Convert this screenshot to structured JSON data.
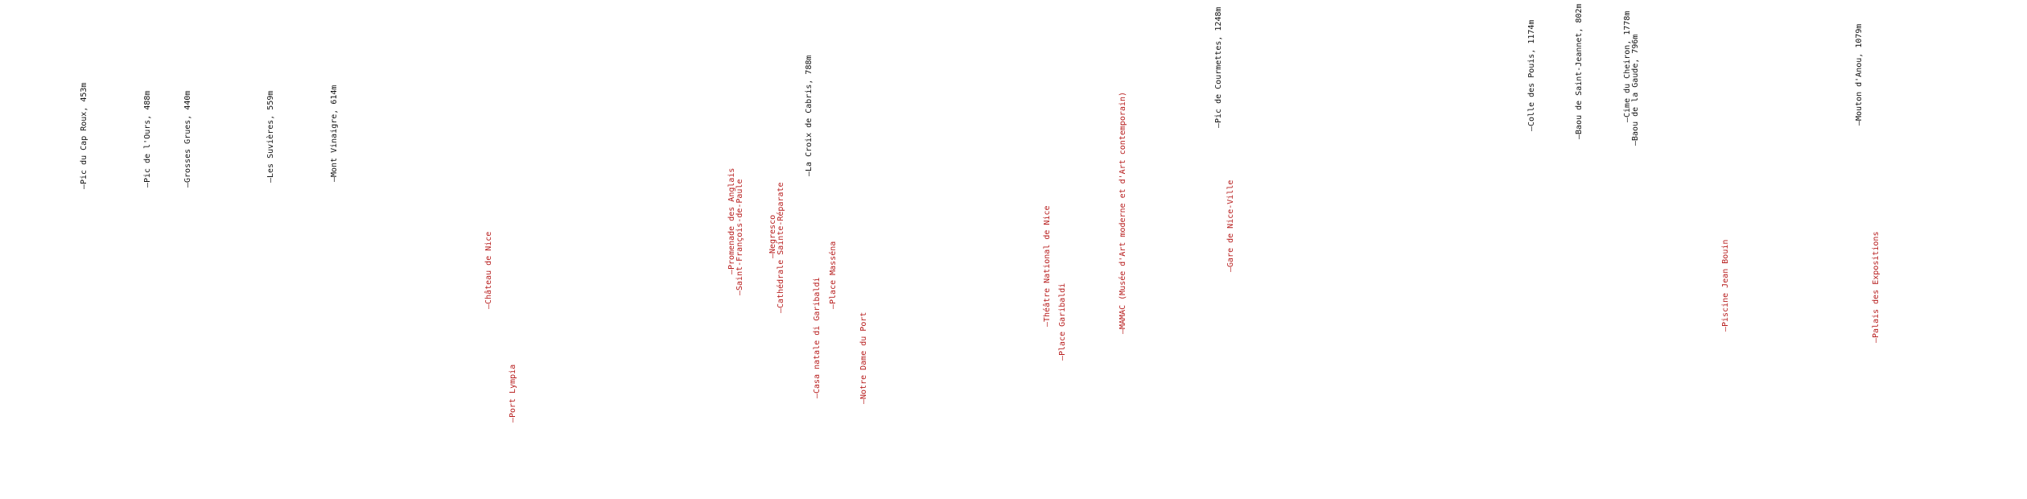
{
  "peaks": [
    {
      "id": "pic-du-cap-roux",
      "name": "Pic du Cap Roux, 453m",
      "color": "#111111"
    },
    {
      "id": "pic-de-l-ours",
      "name": "Pic de l'Ours, 488m",
      "color": "#111111"
    },
    {
      "id": "grosses-grues",
      "name": "Grosses Grues, 440m",
      "color": "#111111"
    },
    {
      "id": "les-suvieres",
      "name": "Les Suvières, 559m",
      "color": "#111111"
    },
    {
      "id": "mont-vinaigre",
      "name": "Mont Vinaigre, 614m",
      "color": "#111111"
    },
    {
      "id": "la-croix-de-cabris",
      "name": "La Croix de Cabris, 788m",
      "color": "#111111"
    },
    {
      "id": "pic-de-courmettes",
      "name": "Pic de Courmettes, 1248m",
      "color": "#111111"
    },
    {
      "id": "colle-des-pouis",
      "name": "Colle des Pouis, 1174m",
      "color": "#111111"
    },
    {
      "id": "baou-de-saint-jeannet",
      "name": "Baou de Saint-Jeannet, 802m",
      "color": "#111111"
    },
    {
      "id": "cime-du-cheiron",
      "name": "Cime du Cheiron, 1778m",
      "color": "#111111"
    },
    {
      "id": "baou-de-la-gaude",
      "name": "Baou de la Gaude, 796m",
      "color": "#111111"
    },
    {
      "id": "mouton-d-anou",
      "name": "Mouton d'Anou, 1079m",
      "color": "#111111"
    }
  ],
  "pois": [
    {
      "id": "chateau-de-nice",
      "name": "Château de Nice",
      "color": "#b71c1c"
    },
    {
      "id": "port-lympia",
      "name": "Port Lympia",
      "color": "#b71c1c"
    },
    {
      "id": "promenade-des-anglais",
      "name": "Promenade des Anglais",
      "color": "#b71c1c"
    },
    {
      "id": "saint-francois-de-paule",
      "name": "Saint-François-de-Paule",
      "color": "#b71c1c"
    },
    {
      "id": "negresco",
      "name": "Negresco",
      "color": "#b71c1c"
    },
    {
      "id": "cathedrale-sainte-reparate",
      "name": "Cathédrale Sainte-Réparate",
      "color": "#b71c1c"
    },
    {
      "id": "casa-natale-di-garibaldi",
      "name": "Casa natale di Garibaldi",
      "color": "#b71c1c"
    },
    {
      "id": "place-massena",
      "name": "Place Masséna",
      "color": "#b71c1c"
    },
    {
      "id": "notre-dame-du-port",
      "name": "Notre Dame du Port",
      "color": "#b71c1c"
    },
    {
      "id": "theatre-national-de-nice",
      "name": "Théâtre National de Nice",
      "color": "#b71c1c"
    },
    {
      "id": "place-garibaldi",
      "name": "Place Garibaldi",
      "color": "#b71c1c"
    },
    {
      "id": "mamac",
      "name": "MAMAC (Musée d'Art moderne et d'Art contemporain)",
      "color": "#b71c1c"
    },
    {
      "id": "gare-de-nice-ville",
      "name": "Gare de Nice-Ville",
      "color": "#b71c1c"
    },
    {
      "id": "piscine-jean-bouin",
      "name": "Piscine Jean Bouin",
      "color": "#b71c1c"
    },
    {
      "id": "palais-des-expositions",
      "name": "Palais des Expositions",
      "color": "#b71c1c"
    }
  ]
}
